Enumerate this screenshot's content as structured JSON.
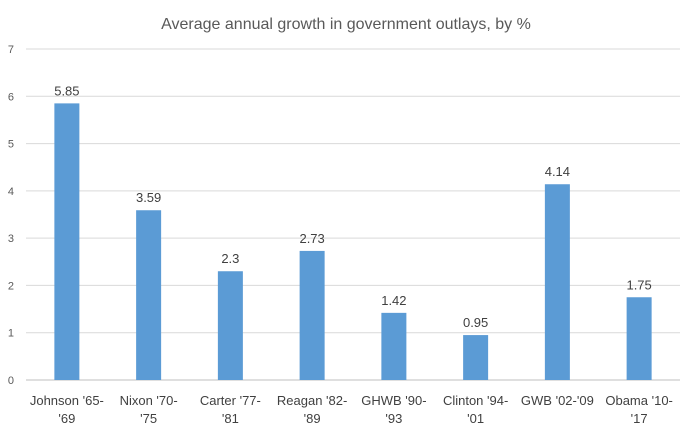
{
  "chart_data": {
    "type": "bar",
    "title": "Average annual growth in government outlays, by %",
    "categories": [
      [
        "Johnson '65-",
        "'69"
      ],
      [
        "Nixon '70-",
        "'75"
      ],
      [
        "Carter '77-",
        "'81"
      ],
      [
        "Reagan '82-",
        "'89"
      ],
      [
        "GHWB '90-",
        "'93"
      ],
      [
        "Clinton '94-",
        "'01"
      ],
      [
        "GWB '02-'09"
      ],
      [
        "Obama '10-",
        "'17"
      ]
    ],
    "values": [
      5.85,
      3.59,
      2.3,
      2.73,
      1.42,
      0.95,
      4.14,
      1.75
    ],
    "data_labels": [
      "5.85",
      "3.59",
      "2.3",
      "2.73",
      "1.42",
      "0.95",
      "4.14",
      "1.75"
    ],
    "ylim": [
      0,
      7
    ],
    "yticks": [
      "0",
      "1",
      "2",
      "3",
      "4",
      "5",
      "6",
      "7"
    ],
    "xlabel": "",
    "ylabel": "",
    "grid": true,
    "bar_color": "#5b9bd5"
  }
}
